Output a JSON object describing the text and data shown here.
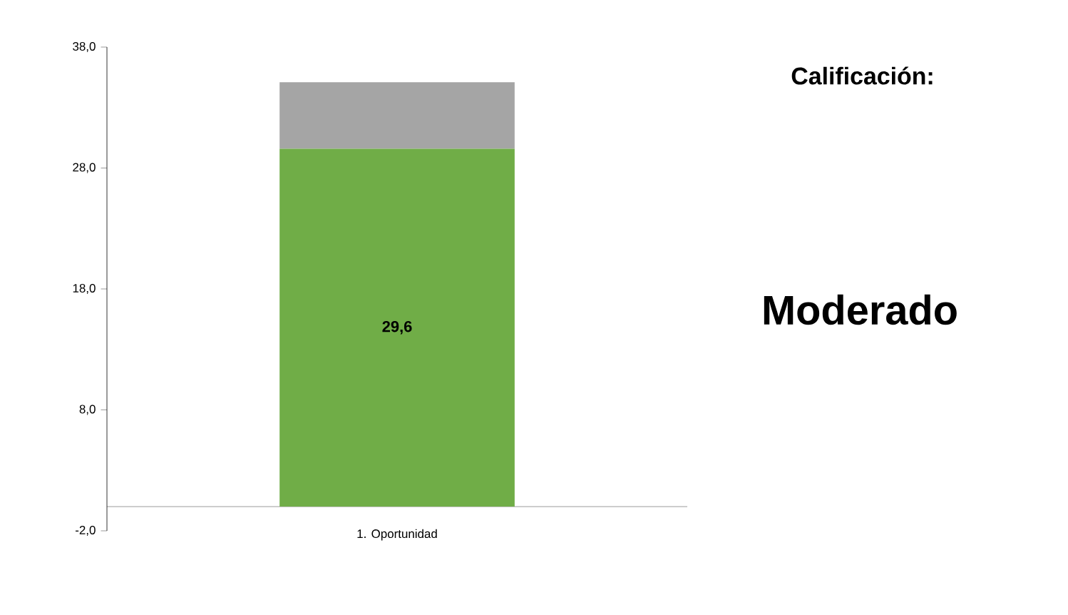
{
  "chart_data": {
    "type": "bar",
    "stacked": true,
    "categories": [
      "1. Oportunidad"
    ],
    "series": [
      {
        "color": "#70ad47",
        "values": [
          29.6
        ],
        "value_labels": [
          "29,6"
        ]
      },
      {
        "color": "#a5a5a5",
        "values": [
          5.5
        ]
      }
    ],
    "ylim": [
      -2,
      38
    ],
    "yticks": [
      {
        "value": -2,
        "label": "-2,0"
      },
      {
        "value": 8,
        "label": "8,0"
      },
      {
        "value": 18,
        "label": "18,0"
      },
      {
        "value": 28,
        "label": "28,0"
      },
      {
        "value": 38,
        "label": "38,0"
      }
    ],
    "annotations": [
      "Calificación:",
      "Moderado"
    ]
  }
}
